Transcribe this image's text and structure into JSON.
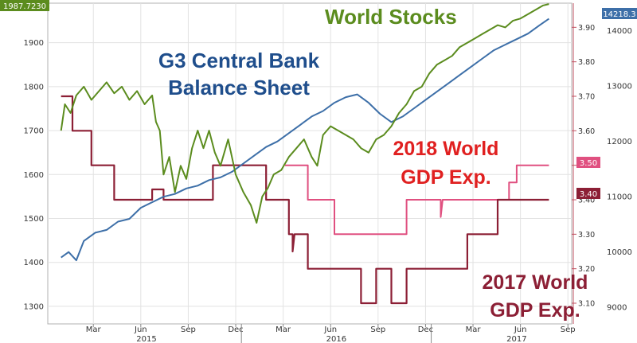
{
  "chart_data": {
    "type": "line",
    "grid": true,
    "x_ticks": [
      "Mar",
      "Jun",
      "Sep",
      "Dec",
      "Mar",
      "Jun",
      "Sep",
      "Dec",
      "Mar",
      "Jun",
      "Sep"
    ],
    "x_years": [
      "2015",
      "2016",
      "2017"
    ],
    "left_axis": {
      "ylim": [
        1260,
        1990
      ],
      "ticks": [
        1300,
        1400,
        1500,
        1600,
        1700,
        1800,
        1900
      ]
    },
    "mid_axis": {
      "ylim": [
        3.04,
        3.97
      ],
      "ticks": [
        3.1,
        3.2,
        3.3,
        3.4,
        3.5,
        3.6,
        3.7,
        3.8,
        3.9
      ]
    },
    "right_axis": {
      "ylim": [
        8700,
        14500
      ],
      "ticks": [
        9000,
        10000,
        11000,
        12000,
        13000,
        14000
      ]
    },
    "value_tags": {
      "left_last": "1987.7230",
      "right_last": "14218.3",
      "gdp2018_last": "3.50",
      "gdp2017_last": "3.40"
    },
    "annotations": {
      "world_stocks": "World Stocks",
      "g3_line1": "G3 Central Bank",
      "g3_line2": "Balance Sheet",
      "gdp2018_line1": "2018 World",
      "gdp2018_line2": "GDP Exp.",
      "gdp2017_line1": "2017 World",
      "gdp2017_line2": "GDP Exp."
    },
    "colors": {
      "world_stocks": "#5b8c1e",
      "balance_sheet": "#3d6fa8",
      "gdp2018": "#e05080",
      "gdp2017": "#8c1f35",
      "annotation_red": "#e02020",
      "annotation_darkred": "#8c1f35",
      "annotation_blue": "#1f4e8c",
      "annotation_green": "#5b8c1e"
    },
    "series": [
      {
        "key": "world_stocks",
        "axis": "left",
        "points": [
          [
            2015.0,
            1700
          ],
          [
            2015.02,
            1760
          ],
          [
            2015.05,
            1740
          ],
          [
            2015.08,
            1780
          ],
          [
            2015.12,
            1800
          ],
          [
            2015.16,
            1770
          ],
          [
            2015.2,
            1790
          ],
          [
            2015.24,
            1810
          ],
          [
            2015.28,
            1785
          ],
          [
            2015.32,
            1800
          ],
          [
            2015.36,
            1770
          ],
          [
            2015.4,
            1790
          ],
          [
            2015.44,
            1760
          ],
          [
            2015.48,
            1780
          ],
          [
            2015.5,
            1720
          ],
          [
            2015.52,
            1700
          ],
          [
            2015.54,
            1600
          ],
          [
            2015.57,
            1640
          ],
          [
            2015.6,
            1560
          ],
          [
            2015.63,
            1620
          ],
          [
            2015.66,
            1590
          ],
          [
            2015.69,
            1660
          ],
          [
            2015.72,
            1700
          ],
          [
            2015.75,
            1660
          ],
          [
            2015.78,
            1700
          ],
          [
            2015.81,
            1650
          ],
          [
            2015.84,
            1620
          ],
          [
            2015.88,
            1680
          ],
          [
            2015.92,
            1600
          ],
          [
            2015.96,
            1560
          ],
          [
            2016.0,
            1530
          ],
          [
            2016.03,
            1490
          ],
          [
            2016.06,
            1550
          ],
          [
            2016.09,
            1570
          ],
          [
            2016.12,
            1600
          ],
          [
            2016.16,
            1610
          ],
          [
            2016.2,
            1640
          ],
          [
            2016.24,
            1660
          ],
          [
            2016.28,
            1680
          ],
          [
            2016.32,
            1640
          ],
          [
            2016.35,
            1620
          ],
          [
            2016.38,
            1690
          ],
          [
            2016.42,
            1710
          ],
          [
            2016.46,
            1700
          ],
          [
            2016.5,
            1690
          ],
          [
            2016.54,
            1680
          ],
          [
            2016.58,
            1660
          ],
          [
            2016.62,
            1650
          ],
          [
            2016.66,
            1680
          ],
          [
            2016.7,
            1690
          ],
          [
            2016.74,
            1710
          ],
          [
            2016.78,
            1740
          ],
          [
            2016.82,
            1760
          ],
          [
            2016.86,
            1790
          ],
          [
            2016.9,
            1800
          ],
          [
            2016.94,
            1830
          ],
          [
            2016.98,
            1850
          ],
          [
            2017.02,
            1860
          ],
          [
            2017.06,
            1870
          ],
          [
            2017.1,
            1890
          ],
          [
            2017.14,
            1900
          ],
          [
            2017.18,
            1910
          ],
          [
            2017.22,
            1920
          ],
          [
            2017.26,
            1930
          ],
          [
            2017.3,
            1940
          ],
          [
            2017.34,
            1935
          ],
          [
            2017.38,
            1950
          ],
          [
            2017.42,
            1955
          ],
          [
            2017.46,
            1965
          ],
          [
            2017.5,
            1975
          ],
          [
            2017.54,
            1985
          ],
          [
            2017.57,
            1988
          ]
        ]
      },
      {
        "key": "balance_sheet",
        "axis": "right",
        "points": [
          [
            2015.0,
            9900
          ],
          [
            2015.04,
            10000
          ],
          [
            2015.08,
            9850
          ],
          [
            2015.12,
            10200
          ],
          [
            2015.18,
            10350
          ],
          [
            2015.24,
            10400
          ],
          [
            2015.3,
            10550
          ],
          [
            2015.36,
            10600
          ],
          [
            2015.42,
            10800
          ],
          [
            2015.48,
            10900
          ],
          [
            2015.54,
            11000
          ],
          [
            2015.6,
            11050
          ],
          [
            2015.66,
            11150
          ],
          [
            2015.72,
            11200
          ],
          [
            2015.78,
            11300
          ],
          [
            2015.84,
            11350
          ],
          [
            2015.9,
            11450
          ],
          [
            2015.96,
            11600
          ],
          [
            2016.02,
            11750
          ],
          [
            2016.08,
            11900
          ],
          [
            2016.14,
            12000
          ],
          [
            2016.2,
            12150
          ],
          [
            2016.26,
            12300
          ],
          [
            2016.32,
            12450
          ],
          [
            2016.38,
            12550
          ],
          [
            2016.44,
            12700
          ],
          [
            2016.5,
            12800
          ],
          [
            2016.56,
            12850
          ],
          [
            2016.62,
            12700
          ],
          [
            2016.68,
            12500
          ],
          [
            2016.74,
            12350
          ],
          [
            2016.8,
            12450
          ],
          [
            2016.86,
            12600
          ],
          [
            2016.92,
            12750
          ],
          [
            2016.98,
            12900
          ],
          [
            2017.04,
            13050
          ],
          [
            2017.1,
            13200
          ],
          [
            2017.16,
            13350
          ],
          [
            2017.22,
            13500
          ],
          [
            2017.28,
            13650
          ],
          [
            2017.34,
            13750
          ],
          [
            2017.4,
            13850
          ],
          [
            2017.46,
            13950
          ],
          [
            2017.52,
            14100
          ],
          [
            2017.57,
            14218
          ]
        ]
      },
      {
        "key": "gdp2018",
        "axis": "mid",
        "points": [
          [
            2016.18,
            3.5
          ],
          [
            2016.3,
            3.5
          ],
          [
            2016.3,
            3.4
          ],
          [
            2016.44,
            3.4
          ],
          [
            2016.44,
            3.3
          ],
          [
            2016.82,
            3.3
          ],
          [
            2016.82,
            3.4
          ],
          [
            2017.0,
            3.4
          ],
          [
            2017.0,
            3.35
          ],
          [
            2017.01,
            3.4
          ],
          [
            2017.36,
            3.4
          ],
          [
            2017.36,
            3.45
          ],
          [
            2017.4,
            3.45
          ],
          [
            2017.4,
            3.5
          ],
          [
            2017.57,
            3.5
          ]
        ]
      },
      {
        "key": "gdp2017",
        "axis": "mid",
        "points": [
          [
            2015.0,
            3.7
          ],
          [
            2015.06,
            3.7
          ],
          [
            2015.06,
            3.6
          ],
          [
            2015.16,
            3.6
          ],
          [
            2015.16,
            3.5
          ],
          [
            2015.28,
            3.5
          ],
          [
            2015.28,
            3.4
          ],
          [
            2015.48,
            3.4
          ],
          [
            2015.48,
            3.43
          ],
          [
            2015.54,
            3.43
          ],
          [
            2015.54,
            3.4
          ],
          [
            2015.8,
            3.4
          ],
          [
            2015.8,
            3.5
          ],
          [
            2016.08,
            3.5
          ],
          [
            2016.08,
            3.4
          ],
          [
            2016.2,
            3.4
          ],
          [
            2016.2,
            3.3
          ],
          [
            2016.22,
            3.3
          ],
          [
            2016.22,
            3.25
          ],
          [
            2016.23,
            3.3
          ],
          [
            2016.3,
            3.3
          ],
          [
            2016.3,
            3.2
          ],
          [
            2016.58,
            3.2
          ],
          [
            2016.58,
            3.1
          ],
          [
            2016.66,
            3.1
          ],
          [
            2016.66,
            3.2
          ],
          [
            2016.74,
            3.2
          ],
          [
            2016.74,
            3.1
          ],
          [
            2016.82,
            3.1
          ],
          [
            2016.82,
            3.2
          ],
          [
            2017.14,
            3.2
          ],
          [
            2017.14,
            3.3
          ],
          [
            2017.3,
            3.3
          ],
          [
            2017.3,
            3.4
          ],
          [
            2017.57,
            3.4
          ]
        ]
      }
    ]
  }
}
